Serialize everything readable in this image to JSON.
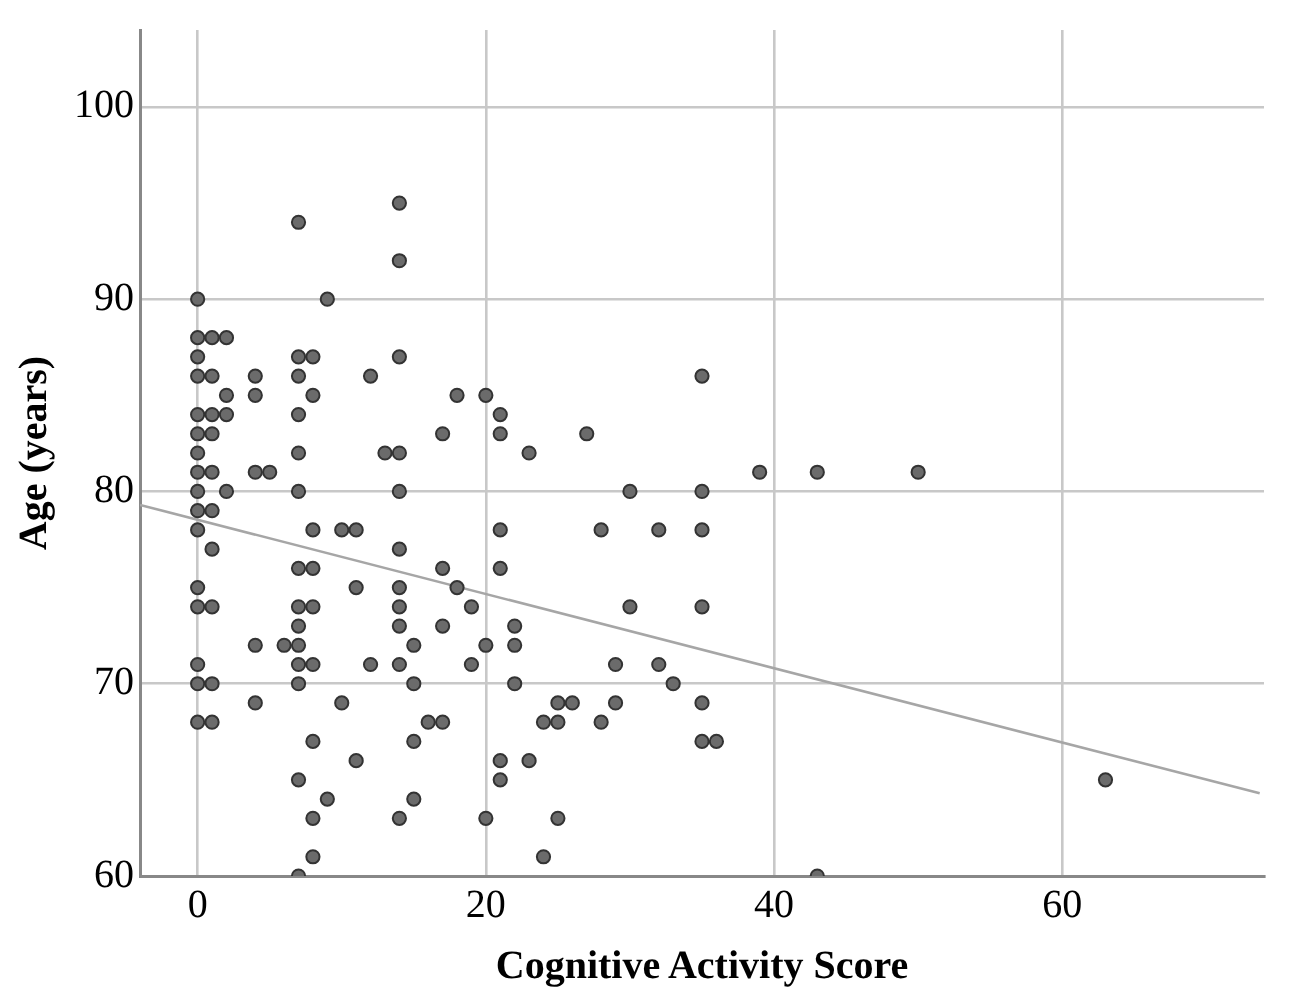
{
  "chart_data": {
    "type": "scatter",
    "xlabel": "Cognitive Activity Score",
    "ylabel": "Age (years)",
    "xlim": [
      -4,
      74
    ],
    "ylim": [
      60,
      104
    ],
    "xticks": [
      0,
      20,
      40,
      60
    ],
    "yticks": [
      60,
      70,
      80,
      90,
      100
    ],
    "grid": true,
    "legend": false,
    "marker": "circle",
    "series": [
      {
        "color": "#6b6b6b",
        "x": [
          0,
          0,
          0,
          0,
          0,
          0,
          0,
          0,
          0,
          0,
          0,
          0,
          0,
          0,
          0,
          0,
          1,
          1,
          1,
          1,
          1,
          1,
          1,
          1,
          1,
          1,
          2,
          2,
          2,
          2,
          4,
          4,
          4,
          4,
          4,
          5,
          6,
          7,
          7,
          7,
          7,
          7,
          7,
          7,
          7,
          7,
          7,
          7,
          7,
          7,
          7,
          8,
          8,
          8,
          8,
          8,
          8,
          8,
          8,
          8,
          9,
          9,
          10,
          10,
          11,
          11,
          11,
          12,
          12,
          13,
          14,
          14,
          14,
          14,
          14,
          14,
          14,
          14,
          14,
          14,
          14,
          15,
          15,
          15,
          15,
          16,
          17,
          17,
          17,
          17,
          18,
          18,
          19,
          19,
          20,
          20,
          20,
          21,
          21,
          21,
          21,
          21,
          21,
          22,
          22,
          22,
          23,
          23,
          24,
          24,
          25,
          25,
          25,
          26,
          27,
          28,
          28,
          29,
          29,
          30,
          30,
          32,
          32,
          33,
          35,
          35,
          35,
          35,
          35,
          35,
          36,
          39,
          43,
          43,
          50,
          63
        ],
        "values": [
          90,
          88,
          87,
          86,
          84,
          83,
          82,
          81,
          80,
          79,
          78,
          75,
          74,
          71,
          70,
          68,
          88,
          86,
          84,
          83,
          81,
          79,
          77,
          74,
          70,
          68,
          88,
          85,
          84,
          80,
          86,
          85,
          81,
          72,
          69,
          81,
          72,
          94,
          87,
          86,
          84,
          82,
          80,
          76,
          74,
          73,
          72,
          71,
          70,
          65,
          60,
          87,
          85,
          78,
          76,
          74,
          71,
          67,
          63,
          61,
          90,
          64,
          78,
          69,
          78,
          75,
          66,
          86,
          71,
          82,
          95,
          92,
          87,
          82,
          80,
          77,
          75,
          74,
          73,
          71,
          63,
          72,
          70,
          67,
          64,
          68,
          83,
          76,
          73,
          68,
          85,
          75,
          74,
          71,
          85,
          72,
          63,
          84,
          83,
          78,
          76,
          66,
          65,
          73,
          72,
          70,
          82,
          66,
          68,
          61,
          69,
          68,
          63,
          69,
          83,
          78,
          68,
          71,
          69,
          80,
          74,
          78,
          71,
          70,
          86,
          80,
          78,
          74,
          69,
          67,
          67,
          81,
          81,
          60,
          81,
          65
        ]
      },
      {
        "type": "line",
        "color": "#a6a6a6",
        "marker": "none",
        "x": [
          -4,
          73.7
        ],
        "values": [
          79.3,
          64.3
        ]
      }
    ]
  }
}
